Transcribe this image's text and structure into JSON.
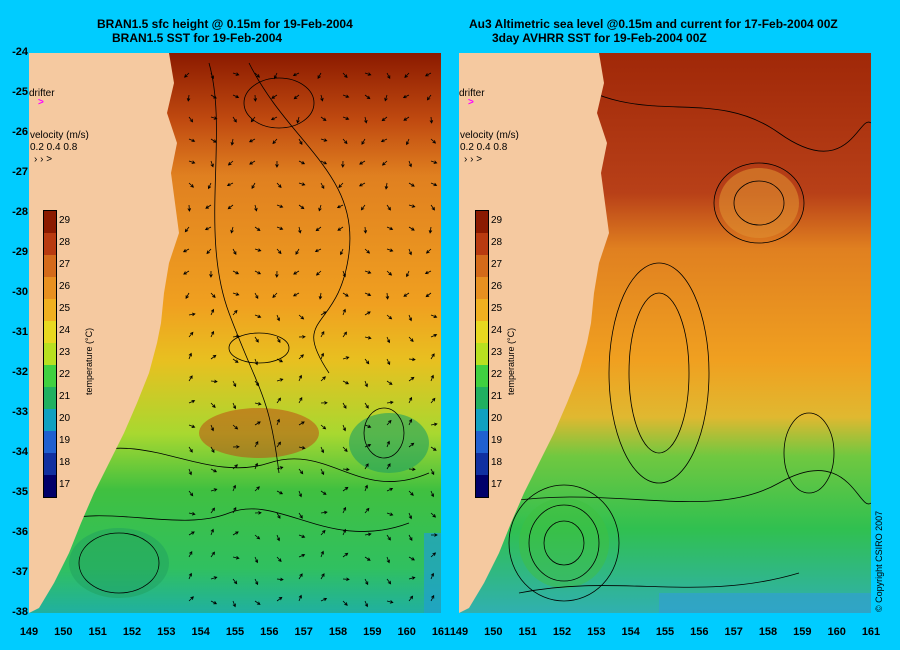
{
  "left_panel": {
    "title_line1": "BRAN1.5 sfc height @ 0.15m for 19-Feb-2004",
    "title_line2": "BRAN1.5 SST for 19-Feb-2004"
  },
  "right_panel": {
    "title_line1": "Au3 Altimetric sea level  @0.15m and current for 17-Feb-2004 00Z",
    "title_line2": "3day AVHRR SST for 19-Feb-2004 00Z"
  },
  "overlay": {
    "drifter_label": "drifter",
    "drifter_marker": ">",
    "velocity_title": "velocity (m/s)",
    "velocity_values": "0.2 0.4 0.8",
    "velocity_arrows": "› › >"
  },
  "colorbar": {
    "title": "temperature (°C)",
    "ticks": [
      "29",
      "28",
      "27",
      "26",
      "25",
      "24",
      "23",
      "22",
      "21",
      "20",
      "19",
      "18",
      "17"
    ],
    "colors": [
      "#8b1a00",
      "#b83a10",
      "#d46a1a",
      "#e89020",
      "#f0b020",
      "#e8d820",
      "#b8e020",
      "#40d040",
      "#20b060",
      "#10a0c0",
      "#2060d0",
      "#1030a0",
      "#00006a"
    ]
  },
  "axes": {
    "lat_labels": [
      "-24",
      "-25",
      "-26",
      "-27",
      "-28",
      "-29",
      "-30",
      "-31",
      "-32",
      "-33",
      "-34",
      "-35",
      "-36",
      "-37",
      "-38"
    ],
    "lon_labels": [
      "149",
      "150",
      "151",
      "152",
      "153",
      "154",
      "155",
      "156",
      "157",
      "158",
      "159",
      "160",
      "161"
    ]
  },
  "colors": {
    "background": "#00ccff",
    "land": "#f5c9a0",
    "marker": "#ff00ff"
  },
  "copyright": "© Copyright CSIRO 2007"
}
